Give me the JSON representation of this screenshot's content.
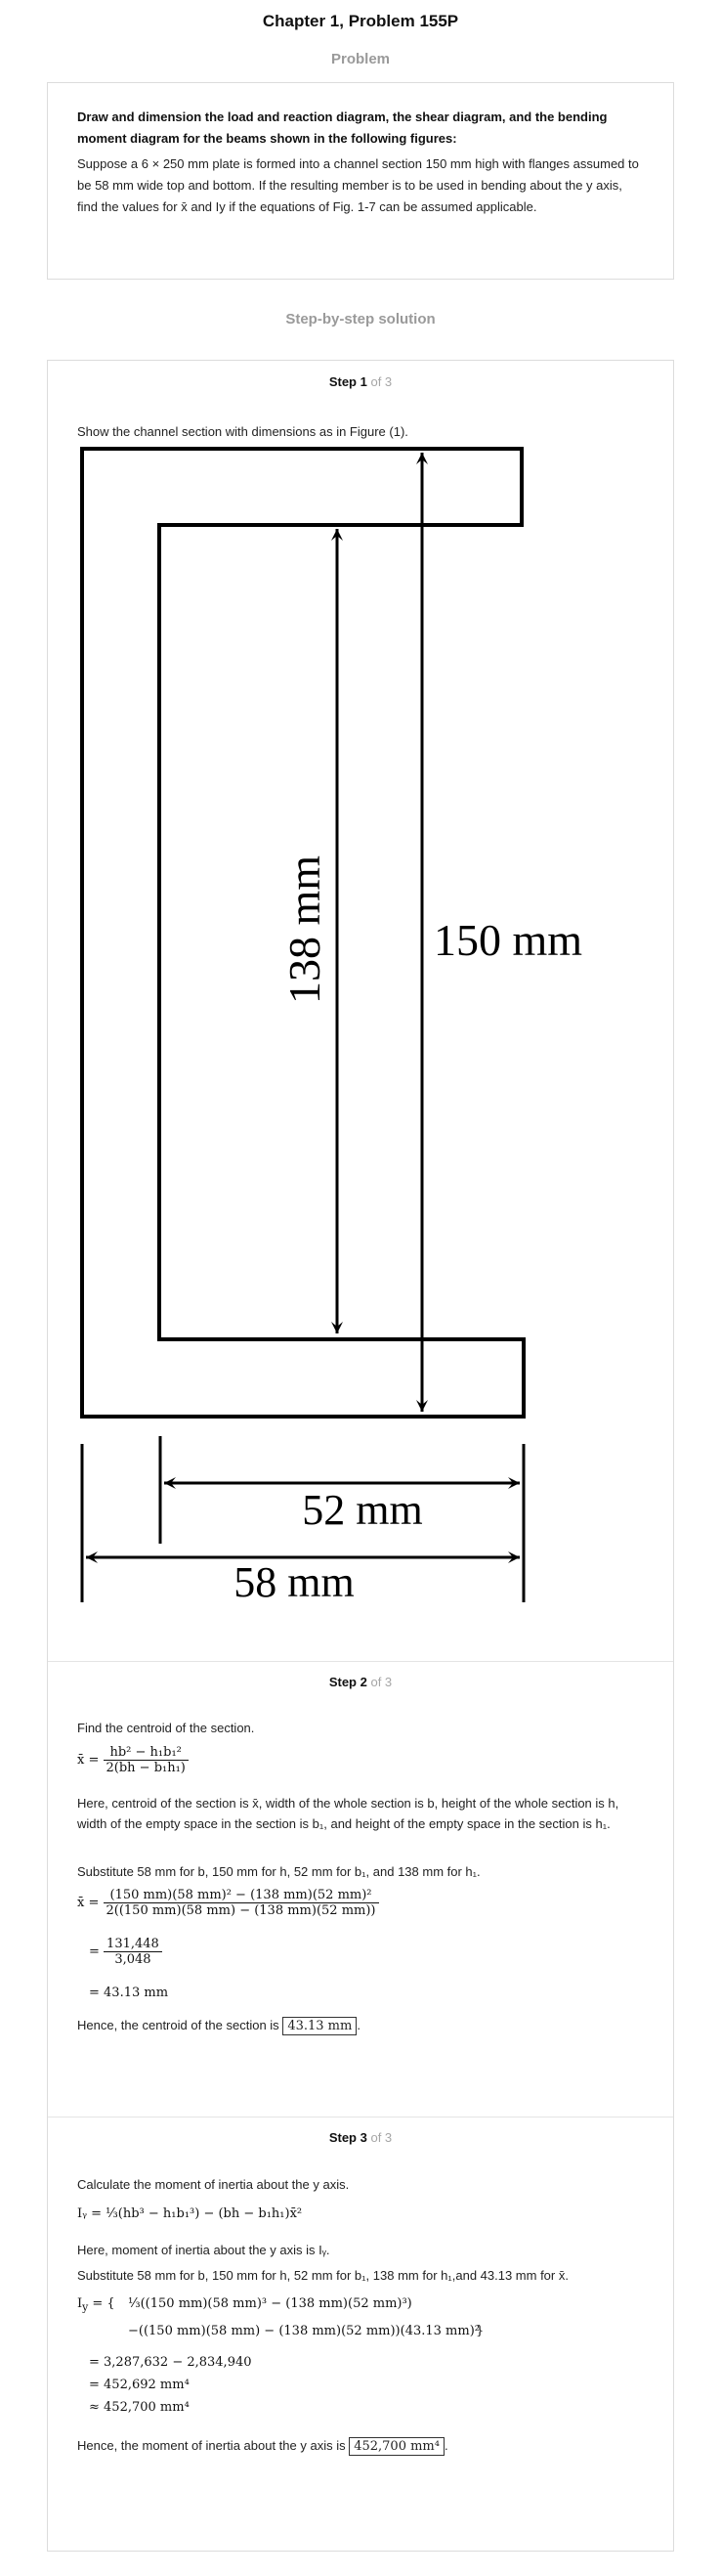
{
  "header": {
    "title": "Chapter 1, Problem 155P",
    "problem_label": "Problem",
    "solution_label": "Step-by-step solution"
  },
  "problem": {
    "bold_text": "Draw and dimension the load and reaction diagram, the shear diagram, and the bending moment diagram for the beams shown in the following figures:",
    "body_text": "Suppose a 6 × 250 mm plate is formed into a channel section 150 mm high with flanges assumed to be 58 mm wide top and bottom. If the resulting member is to be used in bending about the y axis, find the values for x̄ and Iy if the equations of Fig. 1-7 can be assumed applicable."
  },
  "steps": [
    {
      "label": "Step 1",
      "of": "of 3"
    },
    {
      "label": "Step 2",
      "of": "of 3"
    },
    {
      "label": "Step 3",
      "of": "of 3"
    }
  ],
  "step1": {
    "text": "Show the channel section with dimensions as in Figure (1).",
    "dim_138": "138 mm",
    "dim_150": "150 mm",
    "dim_52": "52 mm",
    "dim_58": "58 mm"
  },
  "step2": {
    "intro": "Find the centroid of the section.",
    "formula_lhs": "x̄ =",
    "formula_num": "hb² − h₁b₁²",
    "formula_den": "2(bh − b₁h₁)",
    "explain": "Here, centroid of the section is x̄, width of the whole section is b, height of the whole section is h, width of the empty space in the section is b₁, and height of the empty space in the section is h₁.",
    "substitute": "Substitute 58 mm for b, 150 mm for h, 52 mm for b₁, and 138 mm for h₁.",
    "calc_num": "(150 mm)(58 mm)² − (138 mm)(52 mm)²",
    "calc_den": "2((150 mm)(58 mm) − (138 mm)(52 mm))",
    "calc2_num": "131,448",
    "calc2_den": "3,048",
    "calc3": "= 43.13 mm",
    "conclusion": "Hence, the centroid of the section is",
    "answer": "43.13 mm"
  },
  "step3": {
    "intro": "Calculate the moment of inertia about the y axis.",
    "formula": "Iᵧ = ⅓(hb³ − h₁b₁³) − (bh − b₁h₁)x̄²",
    "explain": "Here, moment of inertia about the y axis is Iᵧ.",
    "substitute": "Substitute 58 mm for b, 150 mm for h, 52 mm for b₁, 138 mm for h₁,and 43.13 mm for x̄.",
    "line1": "⅓((150 mm)(58 mm)³ − (138 mm)(52 mm)³)",
    "line2": "−((150 mm)(58 mm) − (138 mm)(52 mm))(43.13 mm)²",
    "line3": "= 3,287,632 − 2,834,940",
    "line4": "= 452,692 mm⁴",
    "line5": "≈ 452,700 mm⁴",
    "conclusion": "Hence, the moment of inertia about the y axis is",
    "answer": "452,700 mm⁴"
  }
}
